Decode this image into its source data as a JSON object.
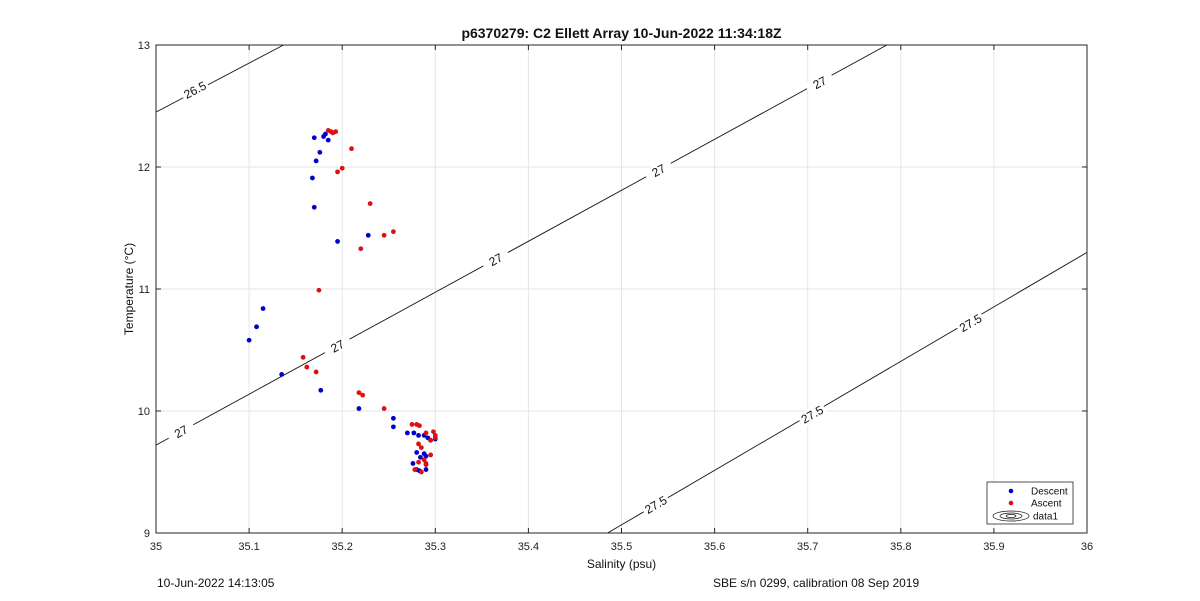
{
  "chart_data": {
    "type": "scatter",
    "title": "p6370279: C2 Ellett Array 10-Jun-2022 11:34:18Z",
    "xlabel": "Salinity (psu)",
    "ylabel": "Temperature (°C)",
    "xlim": [
      35,
      36
    ],
    "ylim": [
      9,
      13
    ],
    "xticks": [
      "35",
      "35.1",
      "35.2",
      "35.3",
      "35.4",
      "35.5",
      "35.6",
      "35.7",
      "35.8",
      "35.9",
      "36"
    ],
    "yticks": [
      "9",
      "10",
      "11",
      "12",
      "13"
    ],
    "grid": true,
    "legend_placement": "bottom-right",
    "series": [
      {
        "name": "Descent",
        "color": "#0000cc",
        "points": [
          [
            35.1,
            10.58
          ],
          [
            35.108,
            10.69
          ],
          [
            35.115,
            10.84
          ],
          [
            35.135,
            10.3
          ],
          [
            35.17,
            11.67
          ],
          [
            35.168,
            11.91
          ],
          [
            35.172,
            12.05
          ],
          [
            35.176,
            12.12
          ],
          [
            35.17,
            12.24
          ],
          [
            35.18,
            12.25
          ],
          [
            35.182,
            12.27
          ],
          [
            35.185,
            12.22
          ],
          [
            35.19,
            12.28
          ],
          [
            35.195,
            11.39
          ],
          [
            35.228,
            11.44
          ],
          [
            35.177,
            10.17
          ],
          [
            35.218,
            10.02
          ],
          [
            35.255,
            9.94
          ],
          [
            35.255,
            9.87
          ],
          [
            35.27,
            9.82
          ],
          [
            35.277,
            9.82
          ],
          [
            35.282,
            9.8
          ],
          [
            35.288,
            9.8
          ],
          [
            35.276,
            9.57
          ],
          [
            35.28,
            9.66
          ],
          [
            35.284,
            9.62
          ],
          [
            35.288,
            9.65
          ],
          [
            35.29,
            9.63
          ],
          [
            35.292,
            9.78
          ],
          [
            35.295,
            9.76
          ],
          [
            35.3,
            9.77
          ],
          [
            35.28,
            9.52
          ],
          [
            35.283,
            9.51
          ],
          [
            35.29,
            9.52
          ]
        ]
      },
      {
        "name": "Ascent",
        "color": "#dd1111",
        "points": [
          [
            35.185,
            12.3
          ],
          [
            35.188,
            12.29
          ],
          [
            35.19,
            12.28
          ],
          [
            35.193,
            12.29
          ],
          [
            35.21,
            12.15
          ],
          [
            35.2,
            11.99
          ],
          [
            35.195,
            11.96
          ],
          [
            35.23,
            11.7
          ],
          [
            35.255,
            11.47
          ],
          [
            35.245,
            11.44
          ],
          [
            35.22,
            11.33
          ],
          [
            35.175,
            10.99
          ],
          [
            35.158,
            10.44
          ],
          [
            35.162,
            10.36
          ],
          [
            35.172,
            10.32
          ],
          [
            35.218,
            10.15
          ],
          [
            35.222,
            10.13
          ],
          [
            35.245,
            10.02
          ],
          [
            35.275,
            9.89
          ],
          [
            35.28,
            9.89
          ],
          [
            35.283,
            9.88
          ],
          [
            35.29,
            9.82
          ],
          [
            35.298,
            9.83
          ],
          [
            35.3,
            9.8
          ],
          [
            35.295,
            9.76
          ],
          [
            35.282,
            9.73
          ],
          [
            35.285,
            9.7
          ],
          [
            35.288,
            9.6
          ],
          [
            35.282,
            9.58
          ],
          [
            35.29,
            9.57
          ],
          [
            35.278,
            9.52
          ],
          [
            35.285,
            9.5
          ],
          [
            35.29,
            9.56
          ],
          [
            35.295,
            9.64
          ],
          [
            35.3,
            9.78
          ]
        ]
      }
    ],
    "contours": [
      {
        "label": "26.5",
        "points": [
          [
            35.0,
            12.45
          ],
          [
            35.137,
            13.0
          ]
        ],
        "label_positions": [
          [
            35.042,
            12.63
          ]
        ]
      },
      {
        "label": "27",
        "points": [
          [
            35.0,
            9.72
          ],
          [
            35.785,
            13.0
          ]
        ],
        "label_positions": [
          [
            35.027,
            9.83
          ],
          [
            35.195,
            10.53
          ],
          [
            35.365,
            11.24
          ],
          [
            35.54,
            11.97
          ],
          [
            35.713,
            12.69
          ]
        ]
      },
      {
        "label": "27.5",
        "points": [
          [
            35.485,
            9.0
          ],
          [
            36.0,
            11.3
          ]
        ],
        "label_positions": [
          [
            35.537,
            9.23
          ],
          [
            35.705,
            9.97
          ],
          [
            35.875,
            10.72
          ]
        ]
      }
    ],
    "legend": {
      "entries": [
        "Descent",
        "Ascent",
        "data1"
      ]
    }
  },
  "footer": {
    "left": "10-Jun-2022 14:13:05",
    "right": "SBE s/n 0299, calibration 08 Sep 2019"
  }
}
